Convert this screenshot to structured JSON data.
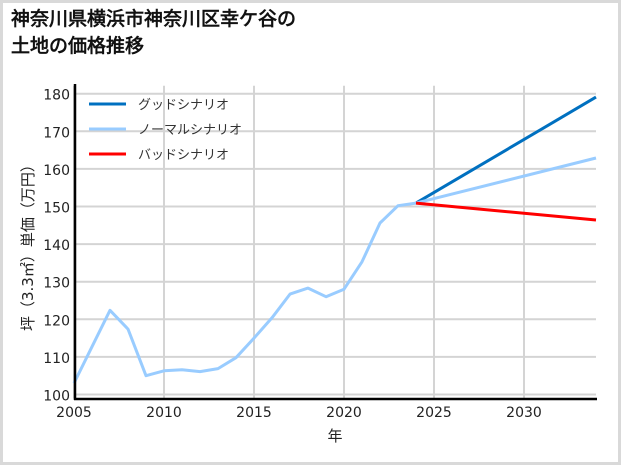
{
  "title": {
    "line1": "神奈川県横浜市神奈川区幸ケ谷の",
    "line2": "土地の価格推移"
  },
  "chart_data": {
    "type": "line",
    "title": "神奈川県横浜市神奈川区幸ケ谷の土地の価格推移",
    "xlabel": "年",
    "ylabel": "坪（3.3㎡）単価（万円）",
    "xlim": [
      2005,
      2034
    ],
    "ylim": [
      100,
      180
    ],
    "xticks": [
      2005,
      2010,
      2015,
      2020,
      2025,
      2030
    ],
    "yticks": [
      100,
      110,
      120,
      130,
      140,
      150,
      160,
      170,
      180
    ],
    "grid": true,
    "legend_position": "upper left",
    "series": [
      {
        "name": "グッドシナリオ",
        "color": "#0070c0",
        "x": [
          2024,
          2034
        ],
        "values": [
          150.9,
          179.1
        ]
      },
      {
        "name": "ノーマルシナリオ",
        "color": "#99ccff",
        "x": [
          2005,
          2006,
          2007,
          2008,
          2009,
          2010,
          2011,
          2012,
          2013,
          2014,
          2015,
          2016,
          2017,
          2018,
          2019,
          2020,
          2021,
          2022,
          2023,
          2024,
          2034
        ],
        "values": [
          103.0,
          112.7,
          122.4,
          117.4,
          105.0,
          106.3,
          106.6,
          106.1,
          106.9,
          109.8,
          115.0,
          120.4,
          126.7,
          128.3,
          126.0,
          128.0,
          135.3,
          145.6,
          150.2,
          150.9,
          162.9
        ]
      },
      {
        "name": "バッドシナリオ",
        "color": "#ff0000",
        "x": [
          2024,
          2034
        ],
        "values": [
          150.9,
          146.4
        ]
      }
    ]
  }
}
